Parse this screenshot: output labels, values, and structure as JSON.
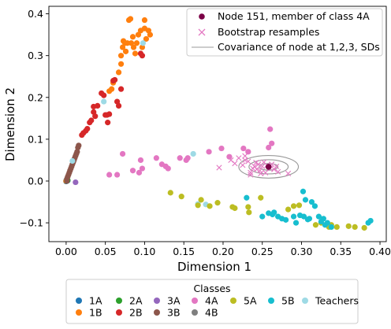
{
  "chart_data": {
    "type": "scatter",
    "xlabel": "Dimension 1",
    "ylabel": "Dimension 2",
    "xlim": [
      -0.022,
      0.408
    ],
    "ylim": [
      -0.145,
      0.418
    ],
    "xticks": [
      0.0,
      0.05,
      0.1,
      0.15,
      0.2,
      0.25,
      0.3,
      0.35,
      0.4
    ],
    "yticks": [
      -0.1,
      0.0,
      0.1,
      0.2,
      0.3,
      0.4
    ],
    "xtick_labels": [
      "0.00",
      "0.05",
      "0.10",
      "0.15",
      "0.20",
      "0.25",
      "0.30",
      "0.35",
      "0.40"
    ],
    "ytick_labels": [
      "−0.1",
      "0.0",
      "0.1",
      "0.2",
      "0.3",
      "0.4"
    ],
    "grid": false,
    "top_legend": {
      "placement": "upper right",
      "entries": [
        {
          "label": "Node 151, member of class 4A",
          "marker": "dot",
          "color": "#7b0046"
        },
        {
          "label": "Bootstrap resamples",
          "marker": "x",
          "color": "#e377c2"
        },
        {
          "label": "Covariance of node at 1,2,3, SDs",
          "marker": "line",
          "color": "#999999"
        }
      ]
    },
    "class_legend": {
      "title": "Classes",
      "placement": "below plot",
      "entries": [
        {
          "label": "1A",
          "color": "#1f77b4"
        },
        {
          "label": "1B",
          "color": "#ff7f0e"
        },
        {
          "label": "2A",
          "color": "#2ca02c"
        },
        {
          "label": "2B",
          "color": "#d62728"
        },
        {
          "label": "3A",
          "color": "#9467bd"
        },
        {
          "label": "3B",
          "color": "#8c564b"
        },
        {
          "label": "4A",
          "color": "#e377c2"
        },
        {
          "label": "4B",
          "color": "#7f7f7f"
        },
        {
          "label": "5A",
          "color": "#bcbd22"
        },
        {
          "label": "5B",
          "color": "#17becf"
        },
        {
          "label": "Teachers",
          "color": "#9edae5"
        }
      ]
    },
    "series": [
      {
        "class": "1A",
        "color": "#1f77b4",
        "points": [
          [
            0.0,
            0.0
          ],
          [
            0.001,
            0.0
          ],
          [
            0.0,
            0.001
          ],
          [
            0.002,
            0.001
          ],
          [
            0.001,
            0.002
          ],
          [
            0.0,
            -0.001
          ]
        ]
      },
      {
        "class": "1B",
        "color": "#ff7f0e",
        "points": [
          [
            0.0,
            0.0
          ],
          [
            0.067,
            0.26
          ],
          [
            0.07,
            0.28
          ],
          [
            0.07,
            0.3
          ],
          [
            0.072,
            0.32
          ],
          [
            0.073,
            0.335
          ],
          [
            0.075,
            0.33
          ],
          [
            0.076,
            0.31
          ],
          [
            0.078,
            0.33
          ],
          [
            0.08,
            0.385
          ],
          [
            0.082,
            0.388
          ],
          [
            0.083,
            0.33
          ],
          [
            0.085,
            0.345
          ],
          [
            0.086,
            0.32
          ],
          [
            0.088,
            0.305
          ],
          [
            0.09,
            0.33
          ],
          [
            0.092,
            0.35
          ],
          [
            0.095,
            0.36
          ],
          [
            0.097,
            0.32
          ],
          [
            0.1,
            0.385
          ],
          [
            0.1,
            0.365
          ],
          [
            0.102,
            0.34
          ],
          [
            0.105,
            0.36
          ],
          [
            0.107,
            0.35
          ],
          [
            0.06,
            0.235
          ],
          [
            0.058,
            0.22
          ],
          [
            0.055,
            0.215
          ]
        ]
      },
      {
        "class": "2B",
        "color": "#d62728",
        "points": [
          [
            0.02,
            0.11
          ],
          [
            0.022,
            0.115
          ],
          [
            0.025,
            0.12
          ],
          [
            0.027,
            0.125
          ],
          [
            0.03,
            0.14
          ],
          [
            0.032,
            0.145
          ],
          [
            0.035,
            0.165
          ],
          [
            0.035,
            0.178
          ],
          [
            0.037,
            0.155
          ],
          [
            0.04,
            0.18
          ],
          [
            0.045,
            0.21
          ],
          [
            0.048,
            0.205
          ],
          [
            0.05,
            0.158
          ],
          [
            0.052,
            0.158
          ],
          [
            0.053,
            0.14
          ],
          [
            0.055,
            0.16
          ],
          [
            0.06,
            0.24
          ],
          [
            0.062,
            0.242
          ],
          [
            0.065,
            0.19
          ],
          [
            0.067,
            0.18
          ],
          [
            0.07,
            0.22
          ],
          [
            0.095,
            0.305
          ],
          [
            0.097,
            0.3
          ]
        ]
      },
      {
        "class": "2A",
        "color": "#2ca02c",
        "points": [
          [
            0.001,
            0.0
          ],
          [
            0.002,
            0.002
          ]
        ]
      },
      {
        "class": "3A",
        "color": "#9467bd",
        "points": [
          [
            0.012,
            -0.003
          ]
        ]
      },
      {
        "class": "3B",
        "color": "#8c564b",
        "points": [
          [
            0.001,
            0.005
          ],
          [
            0.002,
            0.01
          ],
          [
            0.003,
            0.015
          ],
          [
            0.004,
            0.02
          ],
          [
            0.005,
            0.025
          ],
          [
            0.006,
            0.03
          ],
          [
            0.007,
            0.035
          ],
          [
            0.008,
            0.04
          ],
          [
            0.009,
            0.045
          ],
          [
            0.01,
            0.05
          ],
          [
            0.011,
            0.055
          ],
          [
            0.012,
            0.06
          ],
          [
            0.013,
            0.065
          ],
          [
            0.014,
            0.07
          ],
          [
            0.015,
            0.08
          ],
          [
            0.016,
            0.085
          ],
          [
            0.001,
            0.0
          ]
        ]
      },
      {
        "class": "Teachers",
        "color": "#9edae5",
        "points": [
          [
            0.008,
            0.048
          ],
          [
            0.048,
            0.19
          ],
          [
            0.098,
            0.33
          ],
          [
            0.162,
            0.065
          ],
          [
            0.168,
            -0.055
          ],
          [
            0.178,
            -0.056
          ]
        ]
      },
      {
        "class": "4A",
        "color": "#e377c2",
        "points": [
          [
            0.055,
            0.015
          ],
          [
            0.065,
            0.015
          ],
          [
            0.072,
            0.065
          ],
          [
            0.085,
            0.025
          ],
          [
            0.093,
            0.02
          ],
          [
            0.095,
            0.05
          ],
          [
            0.097,
            0.03
          ],
          [
            0.115,
            0.055
          ],
          [
            0.122,
            0.04
          ],
          [
            0.127,
            0.035
          ],
          [
            0.13,
            0.03
          ],
          [
            0.145,
            0.055
          ],
          [
            0.153,
            0.05
          ],
          [
            0.155,
            0.055
          ],
          [
            0.182,
            0.07
          ],
          [
            0.198,
            0.078
          ],
          [
            0.208,
            0.058
          ],
          [
            0.226,
            0.078
          ],
          [
            0.232,
            0.07
          ],
          [
            0.26,
            0.124
          ],
          [
            0.258,
            0.08
          ],
          [
            0.262,
            0.09
          ]
        ]
      },
      {
        "class": "5A",
        "color": "#bcbd22",
        "points": [
          [
            0.133,
            -0.028
          ],
          [
            0.147,
            -0.037
          ],
          [
            0.168,
            -0.058
          ],
          [
            0.172,
            -0.045
          ],
          [
            0.183,
            -0.06
          ],
          [
            0.193,
            -0.052
          ],
          [
            0.212,
            -0.062
          ],
          [
            0.215,
            -0.065
          ],
          [
            0.232,
            -0.062
          ],
          [
            0.233,
            -0.075
          ],
          [
            0.248,
            -0.04
          ],
          [
            0.283,
            -0.068
          ],
          [
            0.29,
            -0.06
          ],
          [
            0.297,
            -0.058
          ],
          [
            0.318,
            -0.105
          ],
          [
            0.325,
            -0.1
          ],
          [
            0.335,
            -0.11
          ],
          [
            0.338,
            -0.105
          ],
          [
            0.345,
            -0.11
          ],
          [
            0.36,
            -0.108
          ],
          [
            0.368,
            -0.11
          ],
          [
            0.38,
            -0.112
          ]
        ]
      },
      {
        "class": "5B",
        "color": "#17becf",
        "points": [
          [
            0.23,
            -0.04
          ],
          [
            0.25,
            -0.085
          ],
          [
            0.258,
            -0.077
          ],
          [
            0.263,
            -0.08
          ],
          [
            0.265,
            -0.075
          ],
          [
            0.27,
            -0.085
          ],
          [
            0.275,
            -0.09
          ],
          [
            0.28,
            -0.093
          ],
          [
            0.29,
            -0.085
          ],
          [
            0.293,
            -0.1
          ],
          [
            0.298,
            -0.082
          ],
          [
            0.302,
            -0.025
          ],
          [
            0.303,
            -0.085
          ],
          [
            0.305,
            -0.045
          ],
          [
            0.308,
            -0.092
          ],
          [
            0.31,
            -0.09
          ],
          [
            0.313,
            -0.05
          ],
          [
            0.317,
            -0.06
          ],
          [
            0.322,
            -0.085
          ],
          [
            0.325,
            -0.097
          ],
          [
            0.328,
            -0.09
          ],
          [
            0.33,
            -0.105
          ],
          [
            0.333,
            -0.1
          ],
          [
            0.338,
            -0.11
          ],
          [
            0.385,
            -0.1
          ],
          [
            0.388,
            -0.095
          ]
        ]
      }
    ],
    "highlight_node": {
      "label": "Node 151, member of class 4A",
      "point": [
        0.258,
        0.034
      ],
      "color": "#7b0046"
    },
    "bootstrap": {
      "color": "#e377c2",
      "points": [
        [
          0.195,
          0.032
        ],
        [
          0.21,
          0.05
        ],
        [
          0.215,
          0.042
        ],
        [
          0.22,
          0.055
        ],
        [
          0.225,
          0.038
        ],
        [
          0.228,
          0.05
        ],
        [
          0.232,
          0.047
        ],
        [
          0.235,
          0.02
        ],
        [
          0.238,
          0.03
        ],
        [
          0.24,
          0.035
        ],
        [
          0.242,
          0.044
        ],
        [
          0.243,
          0.028
        ],
        [
          0.245,
          0.04
        ],
        [
          0.247,
          0.025
        ],
        [
          0.25,
          0.035
        ],
        [
          0.252,
          0.045
        ],
        [
          0.254,
          0.02
        ],
        [
          0.256,
          0.038
        ],
        [
          0.26,
          0.03
        ],
        [
          0.262,
          0.04
        ],
        [
          0.265,
          0.028
        ],
        [
          0.268,
          0.035
        ],
        [
          0.27,
          0.022
        ],
        [
          0.228,
          0.06
        ],
        [
          0.248,
          0.018
        ],
        [
          0.235,
          0.015
        ],
        [
          0.283,
          0.018
        ]
      ]
    },
    "covariance": {
      "center": [
        0.258,
        0.034
      ],
      "rx_sd": [
        0.012,
        0.025,
        0.038
      ],
      "ry_sd": [
        0.008,
        0.017,
        0.027
      ],
      "color": "#999999"
    }
  }
}
